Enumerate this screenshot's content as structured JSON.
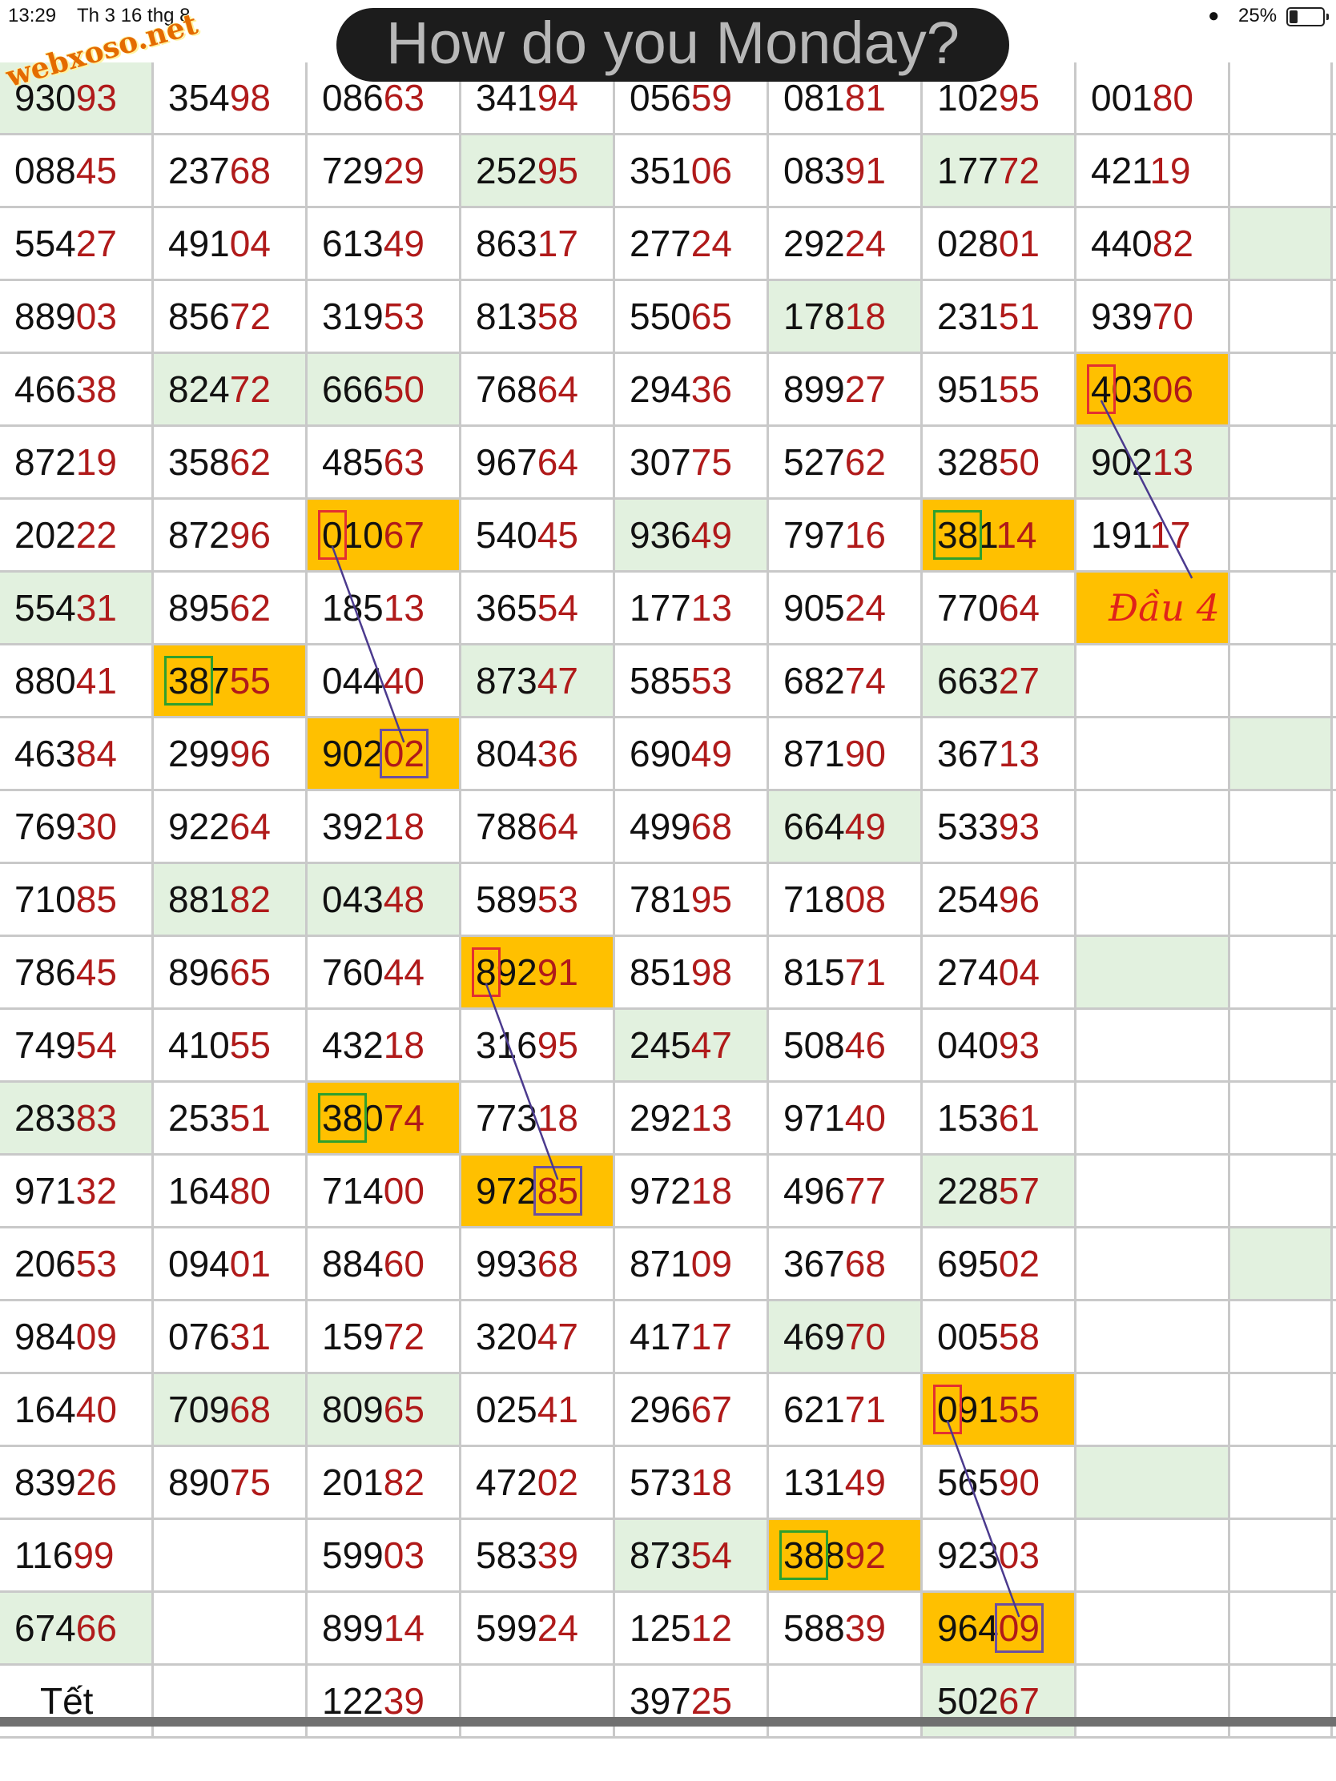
{
  "status_bar": {
    "time": "13:29",
    "date": "Th 3 16 thg 8",
    "battery": "25%",
    "battery_level": 0.25
  },
  "banner": {
    "text": "How do you Monday?"
  },
  "watermark": {
    "text": "webxoso.net"
  },
  "colors": {
    "green": "#e2f1df",
    "orange": "#ffc000",
    "tail": "#b01a1a",
    "connector": "#4b3a8e"
  },
  "rows": [
    [
      {
        "v": "93093",
        "bg": "green"
      },
      {
        "v": "35498"
      },
      {
        "v": "08663"
      },
      {
        "v": "34194"
      },
      {
        "v": "05659"
      },
      {
        "v": "08181"
      },
      {
        "v": "10295"
      },
      {
        "v": "00180"
      },
      {
        "v": "",
        "bg": ""
      }
    ],
    [
      {
        "v": "08845"
      },
      {
        "v": "23768"
      },
      {
        "v": "72929"
      },
      {
        "v": "25295",
        "bg": "green"
      },
      {
        "v": "35106"
      },
      {
        "v": "08391"
      },
      {
        "v": "17772",
        "bg": "green"
      },
      {
        "v": "42119"
      },
      {
        "v": ""
      }
    ],
    [
      {
        "v": "55427"
      },
      {
        "v": "49104"
      },
      {
        "v": "61349"
      },
      {
        "v": "86317"
      },
      {
        "v": "27724"
      },
      {
        "v": "29224"
      },
      {
        "v": "02801"
      },
      {
        "v": "44082"
      },
      {
        "v": "",
        "bg": "green"
      }
    ],
    [
      {
        "v": "88903"
      },
      {
        "v": "85672"
      },
      {
        "v": "31953"
      },
      {
        "v": "81358"
      },
      {
        "v": "55065"
      },
      {
        "v": "17818",
        "bg": "green"
      },
      {
        "v": "23151"
      },
      {
        "v": "93970"
      },
      {
        "v": ""
      }
    ],
    [
      {
        "v": "46638"
      },
      {
        "v": "82472",
        "bg": "green"
      },
      {
        "v": "66650",
        "bg": "green"
      },
      {
        "v": "76864"
      },
      {
        "v": "29436"
      },
      {
        "v": "89927"
      },
      {
        "v": "95155"
      },
      {
        "v": "40306",
        "bg": "orange",
        "box": "head",
        "box_color": "red"
      },
      {
        "v": ""
      }
    ],
    [
      {
        "v": "87219"
      },
      {
        "v": "35862"
      },
      {
        "v": "48563"
      },
      {
        "v": "96764"
      },
      {
        "v": "30775"
      },
      {
        "v": "52762"
      },
      {
        "v": "32850"
      },
      {
        "v": "90213",
        "bg": "green"
      },
      {
        "v": ""
      }
    ],
    [
      {
        "v": "20222"
      },
      {
        "v": "87296"
      },
      {
        "v": "01067",
        "bg": "orange",
        "box": "head",
        "box_color": "red"
      },
      {
        "v": "54045"
      },
      {
        "v": "93649",
        "bg": "green"
      },
      {
        "v": "79716"
      },
      {
        "v": "38114",
        "bg": "orange",
        "box": "head2",
        "box_color": "green"
      },
      {
        "v": "19117"
      },
      {
        "v": ""
      }
    ],
    [
      {
        "v": "55431",
        "bg": "green"
      },
      {
        "v": "89562"
      },
      {
        "v": "18513"
      },
      {
        "v": "36554"
      },
      {
        "v": "17713"
      },
      {
        "v": "90524"
      },
      {
        "v": "77064"
      },
      {
        "v": "Đầu 4",
        "bg": "orange",
        "note": true
      },
      {
        "v": ""
      }
    ],
    [
      {
        "v": "88041"
      },
      {
        "v": "38755",
        "bg": "orange",
        "box": "head2",
        "box_color": "green"
      },
      {
        "v": "04440"
      },
      {
        "v": "87347",
        "bg": "green"
      },
      {
        "v": "58553"
      },
      {
        "v": "68274"
      },
      {
        "v": "66327",
        "bg": "green"
      },
      {
        "v": ""
      },
      {
        "v": ""
      }
    ],
    [
      {
        "v": "46384"
      },
      {
        "v": "29996"
      },
      {
        "v": "90202",
        "bg": "orange",
        "box": "tail",
        "box_color": "purple"
      },
      {
        "v": "80436"
      },
      {
        "v": "69049"
      },
      {
        "v": "87190"
      },
      {
        "v": "36713"
      },
      {
        "v": ""
      },
      {
        "v": "",
        "bg": "green"
      }
    ],
    [
      {
        "v": "76930"
      },
      {
        "v": "92264"
      },
      {
        "v": "39218"
      },
      {
        "v": "78864"
      },
      {
        "v": "49968"
      },
      {
        "v": "66449",
        "bg": "green"
      },
      {
        "v": "53393"
      },
      {
        "v": ""
      },
      {
        "v": ""
      }
    ],
    [
      {
        "v": "71085"
      },
      {
        "v": "88182",
        "bg": "green"
      },
      {
        "v": "04348",
        "bg": "green"
      },
      {
        "v": "58953"
      },
      {
        "v": "78195"
      },
      {
        "v": "71808"
      },
      {
        "v": "25496"
      },
      {
        "v": ""
      },
      {
        "v": ""
      }
    ],
    [
      {
        "v": "78645"
      },
      {
        "v": "89665"
      },
      {
        "v": "76044"
      },
      {
        "v": "89291",
        "bg": "orange",
        "box": "head",
        "box_color": "red"
      },
      {
        "v": "85198"
      },
      {
        "v": "81571"
      },
      {
        "v": "27404"
      },
      {
        "v": "",
        "bg": "green"
      },
      {
        "v": ""
      }
    ],
    [
      {
        "v": "74954"
      },
      {
        "v": "41055"
      },
      {
        "v": "43218"
      },
      {
        "v": "31695"
      },
      {
        "v": "24547",
        "bg": "green"
      },
      {
        "v": "50846"
      },
      {
        "v": "04093"
      },
      {
        "v": ""
      },
      {
        "v": ""
      }
    ],
    [
      {
        "v": "28383",
        "bg": "green"
      },
      {
        "v": "25351"
      },
      {
        "v": "38074",
        "bg": "orange",
        "box": "head2",
        "box_color": "green"
      },
      {
        "v": "77318"
      },
      {
        "v": "29213"
      },
      {
        "v": "97140"
      },
      {
        "v": "15361"
      },
      {
        "v": ""
      },
      {
        "v": ""
      }
    ],
    [
      {
        "v": "97132"
      },
      {
        "v": "16480"
      },
      {
        "v": "71400"
      },
      {
        "v": "97285",
        "bg": "orange",
        "box": "tail",
        "box_color": "purple"
      },
      {
        "v": "97218"
      },
      {
        "v": "49677"
      },
      {
        "v": "22857",
        "bg": "green"
      },
      {
        "v": ""
      },
      {
        "v": ""
      }
    ],
    [
      {
        "v": "20653"
      },
      {
        "v": "09401"
      },
      {
        "v": "88460"
      },
      {
        "v": "99368"
      },
      {
        "v": "87109"
      },
      {
        "v": "36768"
      },
      {
        "v": "69502"
      },
      {
        "v": ""
      },
      {
        "v": "",
        "bg": "green"
      }
    ],
    [
      {
        "v": "98409"
      },
      {
        "v": "07631"
      },
      {
        "v": "15972"
      },
      {
        "v": "32047"
      },
      {
        "v": "41717"
      },
      {
        "v": "46970",
        "bg": "green"
      },
      {
        "v": "00558"
      },
      {
        "v": ""
      },
      {
        "v": ""
      }
    ],
    [
      {
        "v": "16440"
      },
      {
        "v": "70968",
        "bg": "green"
      },
      {
        "v": "80965",
        "bg": "green"
      },
      {
        "v": "02541"
      },
      {
        "v": "29667"
      },
      {
        "v": "62171"
      },
      {
        "v": "09155",
        "bg": "orange",
        "box": "head",
        "box_color": "red"
      },
      {
        "v": ""
      },
      {
        "v": ""
      }
    ],
    [
      {
        "v": "83926"
      },
      {
        "v": "89075"
      },
      {
        "v": "20182"
      },
      {
        "v": "47202"
      },
      {
        "v": "57318"
      },
      {
        "v": "13149"
      },
      {
        "v": "56590"
      },
      {
        "v": "",
        "bg": "green"
      },
      {
        "v": ""
      }
    ],
    [
      {
        "v": "11699"
      },
      {
        "v": ""
      },
      {
        "v": "59903"
      },
      {
        "v": "58339"
      },
      {
        "v": "87354",
        "bg": "green"
      },
      {
        "v": "38892",
        "bg": "orange",
        "box": "head2",
        "box_color": "green"
      },
      {
        "v": "92303"
      },
      {
        "v": ""
      },
      {
        "v": ""
      }
    ],
    [
      {
        "v": "67466",
        "bg": "green"
      },
      {
        "v": ""
      },
      {
        "v": "89914"
      },
      {
        "v": "59924"
      },
      {
        "v": "12512"
      },
      {
        "v": "58839"
      },
      {
        "v": "96409",
        "bg": "orange",
        "box": "tail",
        "box_color": "purple"
      },
      {
        "v": ""
      },
      {
        "v": ""
      }
    ],
    [
      {
        "v": "Tết",
        "center": true
      },
      {
        "v": ""
      },
      {
        "v": "12239"
      },
      {
        "v": ""
      },
      {
        "v": "39725"
      },
      {
        "v": ""
      },
      {
        "v": "50267",
        "bg": "green"
      },
      {
        "v": ""
      },
      {
        "v": ""
      }
    ]
  ]
}
